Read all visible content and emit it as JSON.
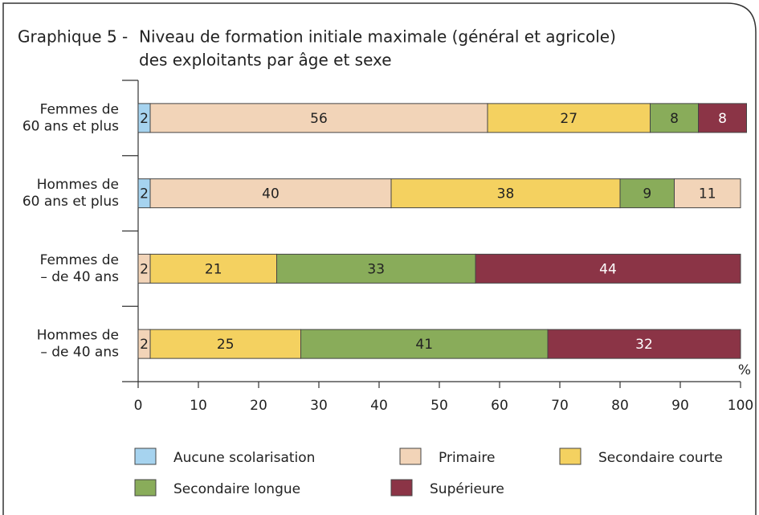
{
  "chart_data": {
    "type": "stacked_bar_horizontal",
    "label": "Graphique 5 -",
    "title": [
      "Niveau de formation initiale maximale (général et agricole)",
      "des exploitants par âge et sexe"
    ],
    "x_unit": "%",
    "categories": [
      [
        "Femmes de",
        "60 ans et plus"
      ],
      [
        "Hommes de",
        "60 ans et plus"
      ],
      [
        "Femmes de",
        "– de 40 ans"
      ],
      [
        "Hommes de",
        "– de 40 ans"
      ]
    ],
    "series": [
      {
        "name": "Aucune scolarisation",
        "color": "#a6d3ef",
        "values": [
          2,
          2,
          null,
          null
        ]
      },
      {
        "name": "Primaire",
        "color": "#f2d4b8",
        "values": [
          56,
          40,
          2,
          2
        ]
      },
      {
        "name": "Secondaire courte",
        "color": "#f4d160",
        "values": [
          27,
          38,
          21,
          25
        ]
      },
      {
        "name": "Secondaire longue",
        "color": "#89ac5a",
        "values": [
          8,
          9,
          33,
          41
        ]
      },
      {
        "name": "Supérieure",
        "color": "#8b3446",
        "colors": [
          "#8b3446",
          "#f2d4b8",
          "#8b3446",
          "#8b3446"
        ],
        "values": [
          8,
          11,
          44,
          32
        ]
      }
    ],
    "xlim": [
      0,
      100
    ],
    "xticks": [
      0,
      10,
      20,
      30,
      40,
      50,
      60,
      70,
      80,
      90,
      100
    ]
  }
}
